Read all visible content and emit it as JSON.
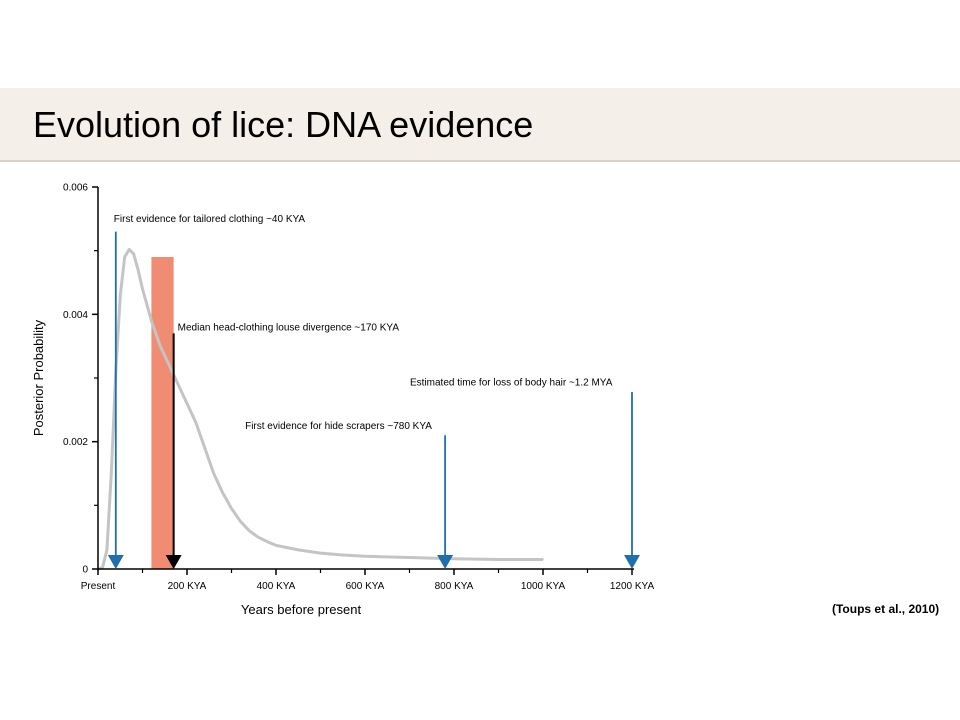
{
  "slide": {
    "title": "Evolution of lice: DNA evidence",
    "citation": "(Toups et al., 2010)"
  },
  "colors": {
    "title_band": "#f4efe8",
    "curve": "#c4c4c4",
    "arrow": "#1f6fad",
    "median_arrow": "#000000",
    "highlight_bar": "#f08c72",
    "axis": "#000000"
  },
  "chart_data": {
    "type": "line",
    "title": "",
    "xlabel": "Years before present",
    "ylabel": "Posterior Probability",
    "xlim": [
      0,
      1200
    ],
    "ylim": [
      0,
      0.006
    ],
    "x_unit": "KYA",
    "x_ticks": [
      {
        "value": 0,
        "label": "Present"
      },
      {
        "value": 200,
        "label": "200 KYA"
      },
      {
        "value": 400,
        "label": "400 KYA"
      },
      {
        "value": 600,
        "label": "600 KYA"
      },
      {
        "value": 800,
        "label": "800 KYA"
      },
      {
        "value": 1000,
        "label": "1000 KYA"
      },
      {
        "value": 1200,
        "label": "1200 KYA"
      }
    ],
    "x_minor_ticks": [
      100,
      300,
      500,
      700,
      900,
      1100
    ],
    "y_ticks": [
      {
        "value": 0,
        "label": "0"
      },
      {
        "value": 0.002,
        "label": "0.002"
      },
      {
        "value": 0.004,
        "label": "0.004"
      },
      {
        "value": 0.006,
        "label": "0.006"
      }
    ],
    "y_minor_ticks": [
      0.001,
      0.003,
      0.005
    ],
    "grid": false,
    "series": [
      {
        "x": [
          0,
          10,
          20,
          30,
          40,
          50,
          60,
          70,
          80,
          90,
          100,
          120,
          140,
          160,
          180,
          200,
          220,
          240,
          260,
          280,
          300,
          320,
          340,
          360,
          380,
          400,
          450,
          500,
          550,
          600,
          700,
          800,
          900,
          1000
        ],
        "values": [
          0,
          2e-05,
          0.0003,
          0.0015,
          0.0031,
          0.0043,
          0.0049,
          0.00502,
          0.00495,
          0.0047,
          0.0044,
          0.0039,
          0.0035,
          0.0032,
          0.0029,
          0.0026,
          0.0023,
          0.0019,
          0.0015,
          0.0012,
          0.00095,
          0.00075,
          0.0006,
          0.0005,
          0.00043,
          0.00037,
          0.0003,
          0.00025,
          0.00022,
          0.0002,
          0.00018,
          0.00016,
          0.00015,
          0.00015
        ]
      }
    ],
    "highlight_band": {
      "from": 120,
      "to": 170,
      "y_top": 0.0049
    },
    "annotations": [
      {
        "label": "First evidence for tailored clothing ~40 KYA",
        "x": 40,
        "arrow_top": 0.0053,
        "label_y": 0.00545,
        "color": "arrow"
      },
      {
        "label": "Median head-clothing louse divergence ~170 KYA",
        "x": 170,
        "arrow_top": 0.0037,
        "label_y": 0.00375,
        "color": "median_arrow"
      },
      {
        "label": "First evidence for hide scrapers ~780 KYA",
        "x": 780,
        "arrow_top": 0.0021,
        "label_y": 0.0022,
        "color": "arrow"
      },
      {
        "label": "Estimated time for loss of body hair ~1.2 MYA",
        "x": 1200,
        "arrow_top": 0.00278,
        "label_y": 0.00288,
        "color": "arrow"
      }
    ]
  }
}
